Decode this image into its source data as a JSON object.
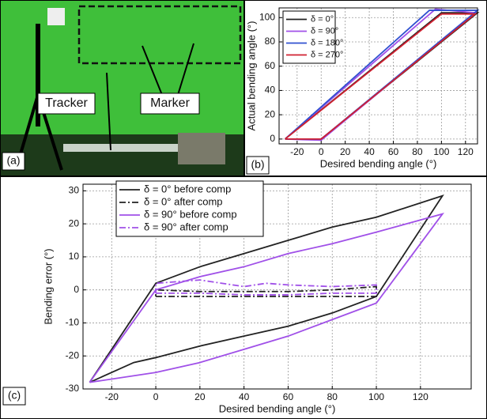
{
  "photo": {
    "panel_label": "(a)",
    "labels": [
      "Tracker",
      "Marker"
    ]
  },
  "chart_data": [
    {
      "type": "line",
      "panel_label": "(b)",
      "xlabel": "Desired bending angle (°)",
      "ylabel": "Actual bending angle (°)",
      "xlim": [
        -35,
        130
      ],
      "ylim": [
        -4,
        108
      ],
      "xticks": [
        -20,
        0,
        20,
        40,
        60,
        80,
        100,
        120
      ],
      "yticks": [
        0,
        20,
        40,
        60,
        80,
        100
      ],
      "grid": true,
      "legend": "upper-left",
      "series": [
        {
          "name": "δ = 0°",
          "color": "#222222",
          "dash": "solid",
          "x": [
            -30,
            0,
            130,
            100,
            -30
          ],
          "values": [
            0,
            0,
            104,
            104,
            0
          ]
        },
        {
          "name": "δ = 90°",
          "color": "#a050e8",
          "dash": "solid",
          "x": [
            -30,
            0,
            128,
            95,
            -30
          ],
          "values": [
            0,
            -1,
            104,
            107,
            0
          ]
        },
        {
          "name": "δ = 180°",
          "color": "#3050d0",
          "dash": "solid",
          "x": [
            -30,
            0,
            130,
            90,
            -30
          ],
          "values": [
            0,
            0,
            106,
            106,
            0
          ]
        },
        {
          "name": "δ = 270°",
          "color": "#d02030",
          "dash": "solid",
          "x": [
            -30,
            0,
            128,
            100,
            -30
          ],
          "values": [
            0,
            0,
            103,
            103,
            0
          ]
        }
      ]
    },
    {
      "type": "line",
      "panel_label": "(c)",
      "xlabel": "Desired bending angle (°)",
      "ylabel": "Bending error (°)",
      "xlim": [
        -33,
        143
      ],
      "ylim": [
        -30,
        32
      ],
      "xticks": [
        -20,
        0,
        20,
        40,
        60,
        80,
        100,
        120
      ],
      "yticks": [
        -30,
        -20,
        -10,
        0,
        10,
        20,
        30
      ],
      "grid": true,
      "legend": "upper-left",
      "series": [
        {
          "name": "δ = 0° before comp",
          "color": "#222222",
          "dash": "solid",
          "x": [
            -30,
            -10,
            0,
            20,
            40,
            60,
            80,
            100,
            130,
            100,
            80,
            60,
            40,
            20,
            0,
            -30
          ],
          "values": [
            -28,
            -22,
            -20.5,
            -17,
            -14,
            -11,
            -7,
            -2,
            28.5,
            22,
            19,
            15,
            11,
            7,
            2,
            -28
          ]
        },
        {
          "name": "δ = 0° after comp",
          "color": "#222222",
          "dash": "dashdot",
          "x": [
            0,
            20,
            40,
            60,
            80,
            100,
            100,
            80,
            60,
            40,
            20,
            0,
            0
          ],
          "values": [
            -2,
            -2,
            -2,
            -2,
            -2,
            -2,
            1,
            0,
            -0.5,
            -0.5,
            -0.5,
            0,
            -2
          ]
        },
        {
          "name": "δ = 90° before comp",
          "color": "#a050e8",
          "dash": "solid",
          "x": [
            -30,
            0,
            20,
            40,
            60,
            80,
            100,
            130,
            100,
            80,
            60,
            40,
            20,
            0,
            -30
          ],
          "values": [
            -28,
            -25,
            -22,
            -18,
            -14,
            -9,
            -4,
            23,
            17.5,
            14,
            11,
            7,
            4,
            0,
            -28
          ]
        },
        {
          "name": "δ = 90° after comp",
          "color": "#a050e8",
          "dash": "dashdot",
          "x": [
            0,
            20,
            40,
            60,
            80,
            100,
            100,
            80,
            60,
            50,
            40,
            20,
            0,
            0
          ],
          "values": [
            -1,
            -1,
            -1.5,
            -1.5,
            -1,
            -1,
            1.5,
            1,
            1.5,
            2,
            1,
            3,
            2,
            -1
          ]
        }
      ]
    }
  ]
}
